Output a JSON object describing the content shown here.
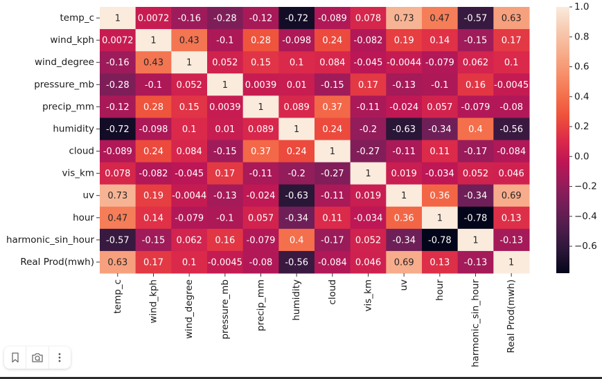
{
  "chart_data": {
    "type": "heatmap",
    "title": "",
    "xlabel": "",
    "ylabel": "",
    "labels": [
      "temp_c",
      "wind_kph",
      "wind_degree",
      "pressure_mb",
      "precip_mm",
      "humidity",
      "cloud",
      "vis_km",
      "uv",
      "hour",
      "harmonic_sin_hour",
      "Real Prod(mwh)"
    ],
    "matrix": [
      [
        "1",
        "0.0072",
        "-0.16",
        "-0.28",
        "-0.12",
        "-0.72",
        "-0.089",
        "0.078",
        "0.73",
        "0.47",
        "-0.57",
        "0.63"
      ],
      [
        "0.0072",
        "1",
        "0.43",
        "-0.1",
        "0.28",
        "-0.098",
        "0.24",
        "-0.082",
        "0.19",
        "0.14",
        "-0.15",
        "0.17"
      ],
      [
        "-0.16",
        "0.43",
        "1",
        "0.052",
        "0.15",
        "0.1",
        "0.084",
        "-0.045",
        "-0.0044",
        "-0.079",
        "0.062",
        "0.1"
      ],
      [
        "-0.28",
        "-0.1",
        "0.052",
        "1",
        "0.0039",
        "0.01",
        "-0.15",
        "0.17",
        "-0.13",
        "-0.1",
        "0.16",
        "-0.0045"
      ],
      [
        "-0.12",
        "0.28",
        "0.15",
        "0.0039",
        "1",
        "0.089",
        "0.37",
        "-0.11",
        "-0.024",
        "0.057",
        "-0.079",
        "-0.08"
      ],
      [
        "-0.72",
        "-0.098",
        "0.1",
        "0.01",
        "0.089",
        "1",
        "0.24",
        "-0.2",
        "-0.63",
        "-0.34",
        "0.4",
        "-0.56"
      ],
      [
        "-0.089",
        "0.24",
        "0.084",
        "-0.15",
        "0.37",
        "0.24",
        "1",
        "-0.27",
        "-0.11",
        "0.11",
        "-0.17",
        "-0.084"
      ],
      [
        "0.078",
        "-0.082",
        "-0.045",
        "0.17",
        "-0.11",
        "-0.2",
        "-0.27",
        "1",
        "0.019",
        "-0.034",
        "0.052",
        "0.046"
      ],
      [
        "0.73",
        "0.19",
        "-0.0044",
        "-0.13",
        "-0.024",
        "-0.63",
        "-0.11",
        "0.019",
        "1",
        "0.36",
        "-0.34",
        "0.69"
      ],
      [
        "0.47",
        "0.14",
        "-0.079",
        "-0.1",
        "0.057",
        "-0.34",
        "0.11",
        "-0.034",
        "0.36",
        "1",
        "-0.78",
        "0.13"
      ],
      [
        "-0.57",
        "-0.15",
        "0.062",
        "0.16",
        "-0.079",
        "0.4",
        "-0.17",
        "0.052",
        "-0.34",
        "-0.78",
        "1",
        "-0.13"
      ],
      [
        "0.63",
        "0.17",
        "0.1",
        "-0.0045",
        "-0.08",
        "-0.56",
        "-0.084",
        "0.046",
        "0.69",
        "0.13",
        "-0.13",
        "1"
      ]
    ],
    "colorbar": {
      "range": [
        -0.78,
        1.0
      ],
      "ticks": [
        1.0,
        0.8,
        0.6,
        0.4,
        0.2,
        0.0,
        -0.2,
        -0.4,
        -0.6
      ],
      "tick_labels": [
        "1.0",
        "0.8",
        "0.6",
        "0.4",
        "0.2",
        "0.0",
        "−0.2",
        "−0.4",
        "−0.6"
      ],
      "colormap": "rocket",
      "placement": "right"
    },
    "annotations": true,
    "grid": false
  },
  "colormap_stops": [
    "#03051a",
    "#2a1637",
    "#4c1d4b",
    "#701f57",
    "#961c5b",
    "#bd1655",
    "#dc2a4a",
    "#ee4f3a",
    "#f4704c",
    "#f6916b",
    "#f7af8e",
    "#f7cbb2",
    "#faebdd"
  ],
  "toolbar": {
    "buttons": [
      {
        "name": "bookmark",
        "icon": "bookmark-icon"
      },
      {
        "name": "camera",
        "icon": "camera-icon"
      },
      {
        "name": "more",
        "icon": "more-vertical-icon"
      }
    ]
  }
}
